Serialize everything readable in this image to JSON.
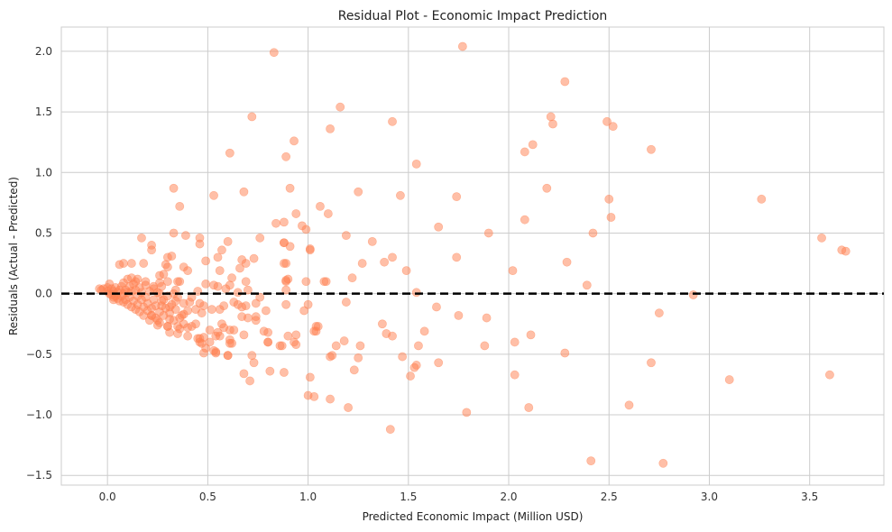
{
  "chart_data": {
    "type": "scatter",
    "title": "Residual Plot - Economic Impact Prediction",
    "xlabel": "Predicted Economic Impact (Million USD)",
    "ylabel": "Residuals (Actual - Predicted)",
    "xlim": [
      -0.23,
      3.87
    ],
    "ylim": [
      -1.58,
      2.2
    ],
    "xticks": [
      "0.0",
      "0.5",
      "1.0",
      "1.5",
      "2.0",
      "2.5",
      "3.0",
      "3.5"
    ],
    "yticks": [
      "−1.5",
      "−1.0",
      "−0.5",
      "0.0",
      "0.5",
      "1.0",
      "1.5",
      "2.0"
    ],
    "grid": true,
    "point_color": "#ff7f50",
    "point_alpha": 0.5,
    "reference_line": {
      "y": 0,
      "style": "dashed",
      "color": "#000000"
    },
    "points": [
      [
        0.83,
        1.99
      ],
      [
        1.77,
        2.04
      ],
      [
        2.28,
        1.75
      ],
      [
        1.16,
        1.54
      ],
      [
        0.72,
        1.46
      ],
      [
        1.42,
        1.42
      ],
      [
        2.21,
        1.46
      ],
      [
        2.22,
        1.4
      ],
      [
        2.49,
        1.42
      ],
      [
        2.52,
        1.38
      ],
      [
        1.11,
        1.36
      ],
      [
        0.93,
        1.26
      ],
      [
        2.12,
        1.23
      ],
      [
        2.08,
        1.17
      ],
      [
        0.61,
        1.16
      ],
      [
        0.89,
        1.13
      ],
      [
        1.54,
        1.07
      ],
      [
        2.71,
        1.19
      ],
      [
        0.33,
        0.87
      ],
      [
        0.91,
        0.87
      ],
      [
        1.25,
        0.84
      ],
      [
        1.46,
        0.81
      ],
      [
        1.74,
        0.8
      ],
      [
        0.53,
        0.81
      ],
      [
        0.68,
        0.84
      ],
      [
        0.36,
        0.72
      ],
      [
        1.06,
        0.72
      ],
      [
        1.1,
        0.66
      ],
      [
        2.19,
        0.87
      ],
      [
        2.5,
        0.78
      ],
      [
        3.26,
        0.78
      ],
      [
        2.51,
        0.63
      ],
      [
        2.08,
        0.61
      ],
      [
        0.84,
        0.58
      ],
      [
        0.88,
        0.59
      ],
      [
        0.97,
        0.56
      ],
      [
        0.99,
        0.53
      ],
      [
        0.94,
        0.66
      ],
      [
        1.65,
        0.55
      ],
      [
        1.9,
        0.5
      ],
      [
        2.42,
        0.5
      ],
      [
        3.56,
        0.46
      ],
      [
        3.66,
        0.36
      ],
      [
        3.68,
        0.35
      ],
      [
        1.19,
        0.48
      ],
      [
        1.32,
        0.43
      ],
      [
        0.76,
        0.46
      ],
      [
        0.88,
        0.42
      ],
      [
        1.01,
        0.37
      ],
      [
        1.42,
        0.3
      ],
      [
        1.38,
        0.26
      ],
      [
        1.27,
        0.25
      ],
      [
        1.74,
        0.3
      ],
      [
        2.02,
        0.19
      ],
      [
        2.29,
        0.26
      ],
      [
        1.49,
        0.19
      ],
      [
        2.39,
        0.07
      ],
      [
        2.92,
        -0.01
      ],
      [
        1.54,
        0.01
      ],
      [
        1.08,
        0.1
      ],
      [
        0.99,
        0.1
      ],
      [
        0.89,
        0.11
      ],
      [
        0.89,
        0.25
      ],
      [
        1.37,
        -0.25
      ],
      [
        1.39,
        -0.33
      ],
      [
        1.42,
        -0.35
      ],
      [
        1.64,
        -0.11
      ],
      [
        1.75,
        -0.18
      ],
      [
        1.89,
        -0.2
      ],
      [
        1.58,
        -0.31
      ],
      [
        1.55,
        -0.43
      ],
      [
        1.26,
        -0.43
      ],
      [
        1.14,
        -0.43
      ],
      [
        1.18,
        -0.39
      ],
      [
        1.88,
        -0.43
      ],
      [
        2.03,
        -0.4
      ],
      [
        2.11,
        -0.34
      ],
      [
        2.28,
        -0.49
      ],
      [
        2.75,
        -0.16
      ],
      [
        1.47,
        -0.52
      ],
      [
        1.54,
        -0.59
      ],
      [
        1.53,
        -0.61
      ],
      [
        1.65,
        -0.57
      ],
      [
        1.51,
        -0.68
      ],
      [
        1.25,
        -0.53
      ],
      [
        1.23,
        -0.63
      ],
      [
        1.11,
        -0.52
      ],
      [
        2.71,
        -0.57
      ],
      [
        2.03,
        -0.67
      ],
      [
        3.6,
        -0.67
      ],
      [
        3.1,
        -0.71
      ],
      [
        1.01,
        -0.69
      ],
      [
        1.0,
        -0.84
      ],
      [
        1.03,
        -0.85
      ],
      [
        1.11,
        -0.87
      ],
      [
        1.2,
        -0.94
      ],
      [
        2.1,
        -0.94
      ],
      [
        1.79,
        -0.98
      ],
      [
        1.41,
        -1.12
      ],
      [
        2.6,
        -0.92
      ],
      [
        2.41,
        -1.38
      ],
      [
        2.77,
        -1.4
      ],
      [
        1.04,
        -0.27
      ],
      [
        1.03,
        -0.31
      ],
      [
        0.94,
        -0.34
      ],
      [
        0.93,
        -0.4
      ],
      [
        0.86,
        -0.43
      ],
      [
        0.81,
        -0.64
      ],
      [
        0.88,
        -0.65
      ],
      [
        0.68,
        -0.66
      ],
      [
        0.71,
        -0.72
      ],
      [
        0.73,
        -0.57
      ],
      [
        0.72,
        -0.51
      ],
      [
        0.8,
        -0.4
      ],
      [
        0.78,
        -0.31
      ],
      [
        0.74,
        -0.19
      ],
      [
        0.62,
        -0.41
      ],
      [
        0.6,
        -0.51
      ],
      [
        0.54,
        -0.48
      ],
      [
        0.48,
        -0.49
      ],
      [
        0.47,
        -0.41
      ],
      [
        0.46,
        -0.37
      ],
      [
        0.17,
        0.46
      ],
      [
        0.33,
        0.5
      ],
      [
        0.39,
        0.48
      ],
      [
        0.46,
        0.46
      ],
      [
        0.46,
        0.41
      ],
      [
        0.22,
        0.4
      ],
      [
        0.22,
        0.36
      ],
      [
        0.06,
        0.24
      ],
      [
        0.08,
        0.25
      ],
      [
        0.12,
        0.25
      ],
      [
        0.18,
        0.25
      ],
      [
        0.3,
        0.3
      ],
      [
        0.32,
        0.31
      ],
      [
        0.29,
        0.24
      ],
      [
        0.3,
        0.22
      ],
      [
        0.38,
        0.22
      ],
      [
        0.4,
        0.19
      ],
      [
        0.26,
        0.15
      ],
      [
        0.28,
        0.16
      ],
      [
        0.19,
        0.1
      ],
      [
        0.36,
        0.1
      ],
      [
        0.45,
        0.02
      ],
      [
        0.49,
        0.27
      ],
      [
        0.55,
        0.3
      ],
      [
        0.57,
        0.36
      ],
      [
        0.6,
        0.43
      ],
      [
        0.56,
        0.19
      ],
      [
        0.62,
        0.13
      ],
      [
        0.67,
        0.28
      ],
      [
        0.69,
        0.25
      ],
      [
        0.66,
        0.21
      ],
      [
        0.73,
        0.29
      ],
      [
        0.69,
        0.1
      ],
      [
        0.49,
        0.08
      ],
      [
        0.53,
        0.07
      ],
      [
        0.55,
        0.06
      ],
      [
        0.59,
        0.04
      ],
      [
        0.61,
        0.07
      ],
      [
        0.65,
        0.01
      ],
      [
        0.7,
        0.03
      ],
      [
        0.76,
        -0.03
      ],
      [
        0.41,
        -0.07
      ],
      [
        0.44,
        -0.13
      ],
      [
        0.46,
        -0.08
      ],
      [
        0.48,
        -0.1
      ],
      [
        0.47,
        -0.16
      ],
      [
        0.52,
        -0.13
      ],
      [
        0.56,
        -0.13
      ],
      [
        0.58,
        -0.1
      ],
      [
        0.63,
        -0.07
      ],
      [
        0.65,
        -0.09
      ],
      [
        0.67,
        -0.11
      ],
      [
        0.69,
        -0.1
      ],
      [
        0.74,
        -0.08
      ],
      [
        0.79,
        -0.14
      ],
      [
        0.67,
        -0.19
      ],
      [
        0.7,
        -0.2
      ],
      [
        0.74,
        -0.22
      ],
      [
        0.89,
        -0.09
      ],
      [
        1.0,
        -0.09
      ],
      [
        0.98,
        -0.14
      ],
      [
        0.57,
        -0.25
      ],
      [
        0.58,
        -0.28
      ],
      [
        0.61,
        -0.3
      ],
      [
        0.63,
        -0.3
      ],
      [
        0.68,
        -0.34
      ],
      [
        0.51,
        -0.3
      ],
      [
        0.55,
        -0.32
      ],
      [
        0.54,
        -0.35
      ],
      [
        0.56,
        -0.35
      ],
      [
        0.61,
        -0.38
      ],
      [
        0.61,
        -0.41
      ],
      [
        0.45,
        -0.37
      ],
      [
        0.46,
        -0.4
      ],
      [
        0.48,
        -0.36
      ],
      [
        0.49,
        -0.45
      ],
      [
        0.51,
        -0.4
      ],
      [
        0.53,
        -0.47
      ],
      [
        0.54,
        -0.49
      ],
      [
        0.6,
        -0.51
      ],
      [
        0.4,
        -0.35
      ],
      [
        0.4,
        -0.28
      ],
      [
        0.42,
        -0.27
      ],
      [
        0.44,
        -0.25
      ],
      [
        0.38,
        -0.25
      ],
      [
        0.35,
        -0.27
      ],
      [
        0.35,
        -0.33
      ],
      [
        0.31,
        -0.32
      ],
      [
        0.36,
        -0.2
      ],
      [
        0.38,
        -0.17
      ],
      [
        0.31,
        -0.21
      ],
      [
        0.3,
        -0.27
      ],
      [
        0.25,
        -0.26
      ],
      [
        0.25,
        -0.22
      ],
      [
        0.21,
        -0.22
      ],
      [
        0.22,
        -0.18
      ],
      [
        0.31,
        -0.11
      ],
      [
        0.34,
        -0.06
      ],
      [
        0.35,
        -0.03
      ],
      [
        0.33,
        0.0
      ],
      [
        0.26,
        0.0
      ],
      [
        0.27,
        -0.1
      ],
      [
        0.28,
        -0.05
      ],
      [
        0.26,
        0.09
      ],
      [
        0.3,
        0.1
      ],
      [
        0.35,
        0.1
      ],
      [
        0.34,
        0.03
      ],
      [
        0.27,
        0.06
      ],
      [
        0.23,
        0.04
      ],
      [
        0.89,
        0.1
      ],
      [
        0.9,
        0.12
      ],
      [
        0.89,
        0.03
      ],
      [
        1.09,
        0.1
      ],
      [
        1.22,
        0.13
      ],
      [
        1.19,
        -0.07
      ],
      [
        1.01,
        0.36
      ],
      [
        0.88,
        0.25
      ],
      [
        0.88,
        0.42
      ],
      [
        0.91,
        0.39
      ],
      [
        0.8,
        -0.32
      ],
      [
        0.8,
        -0.4
      ],
      [
        0.87,
        -0.43
      ],
      [
        0.9,
        -0.35
      ],
      [
        0.94,
        -0.42
      ],
      [
        1.04,
        -0.31
      ],
      [
        1.05,
        -0.27
      ],
      [
        1.12,
        -0.51
      ],
      [
        -0.04,
        0.04
      ],
      [
        -0.03,
        0.03
      ],
      [
        -0.02,
        0.04
      ],
      [
        0.0,
        0.05
      ],
      [
        0.0,
        0.02
      ],
      [
        0.01,
        0.0
      ],
      [
        0.01,
        0.08
      ],
      [
        0.02,
        0.04
      ],
      [
        0.02,
        -0.01
      ],
      [
        0.03,
        0.02
      ],
      [
        0.03,
        -0.03
      ],
      [
        0.04,
        0.05
      ],
      [
        0.04,
        -0.02
      ],
      [
        0.05,
        -0.04
      ],
      [
        0.05,
        0.01
      ],
      [
        0.06,
        0.03
      ],
      [
        0.06,
        -0.06
      ],
      [
        0.07,
        -0.02
      ],
      [
        0.07,
        0.06
      ],
      [
        0.08,
        -0.07
      ],
      [
        0.08,
        0.0
      ],
      [
        0.09,
        0.03
      ],
      [
        0.09,
        -0.05
      ],
      [
        0.1,
        0.12
      ],
      [
        0.1,
        -0.09
      ],
      [
        0.1,
        0.01
      ],
      [
        0.11,
        -0.03
      ],
      [
        0.11,
        0.06
      ],
      [
        0.12,
        -0.11
      ],
      [
        0.12,
        0.02
      ],
      [
        0.13,
        -0.06
      ],
      [
        0.13,
        0.08
      ],
      [
        0.14,
        -0.13
      ],
      [
        0.14,
        0.03
      ],
      [
        0.15,
        -0.02
      ],
      [
        0.15,
        -0.09
      ],
      [
        0.16,
        0.05
      ],
      [
        0.16,
        -0.15
      ],
      [
        0.17,
        -0.05
      ],
      [
        0.17,
        0.01
      ],
      [
        0.18,
        -0.11
      ],
      [
        0.18,
        -0.18
      ],
      [
        0.19,
        0.07
      ],
      [
        0.19,
        -0.03
      ],
      [
        0.2,
        -0.14
      ],
      [
        0.2,
        -0.08
      ],
      [
        0.21,
        0.02
      ],
      [
        0.22,
        -0.12
      ],
      [
        0.22,
        -0.18
      ],
      [
        0.23,
        0.06
      ],
      [
        0.23,
        -0.05
      ],
      [
        0.24,
        -0.2
      ],
      [
        0.24,
        -0.1
      ],
      [
        0.25,
        0.01
      ],
      [
        0.26,
        -0.15
      ],
      [
        0.26,
        -0.24
      ],
      [
        0.27,
        -0.06
      ],
      [
        0.28,
        -0.18
      ],
      [
        0.29,
        -0.12
      ],
      [
        0.3,
        -0.02
      ],
      [
        0.3,
        -0.27
      ],
      [
        0.31,
        -0.16
      ],
      [
        0.32,
        -0.09
      ],
      [
        0.33,
        -0.22
      ],
      [
        0.34,
        -0.13
      ],
      [
        0.36,
        -0.29
      ],
      [
        0.37,
        -0.18
      ],
      [
        0.38,
        -0.08
      ],
      [
        0.4,
        -0.14
      ],
      [
        0.42,
        -0.03
      ],
      [
        0.12,
        0.13
      ],
      [
        0.14,
        0.1
      ],
      [
        0.08,
        0.09
      ],
      [
        0.03,
        -0.05
      ],
      [
        0.15,
        0.12
      ]
    ]
  }
}
